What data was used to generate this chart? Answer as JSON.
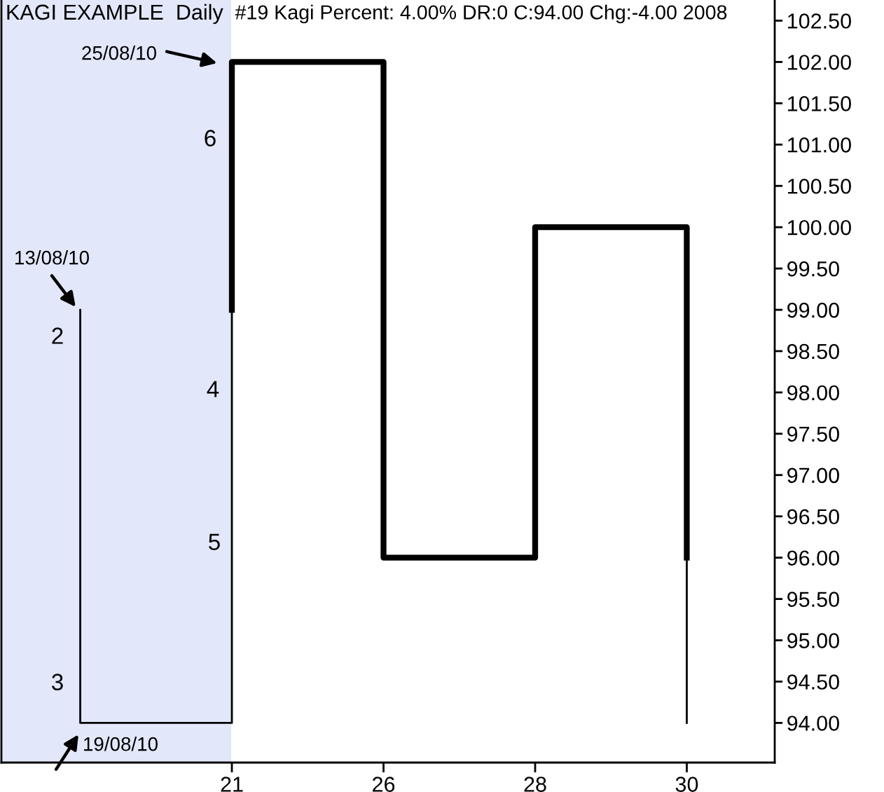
{
  "chart_data": {
    "type": "line",
    "title": "KAGI EXAMPLE  Daily",
    "subtitle": "#19 Kagi Percent: 4.00% DR:0 C:94.00 Chg:-4.00 2008",
    "categories": [
      null,
      "21",
      "26",
      "28",
      "30"
    ],
    "series": [
      {
        "color": "#000000",
        "x": [
          null,
          null,
          "21",
          "21"
        ],
        "values": [
          99,
          94,
          94,
          99
        ]
      },
      {
        "color": "#000000",
        "x": [
          "21",
          "21",
          "26",
          "26",
          "28",
          "28",
          "30",
          "30"
        ],
        "values": [
          99,
          102,
          102,
          96,
          96,
          100,
          100,
          96
        ]
      },
      {
        "color": "#000000",
        "x": [
          "30",
          "30"
        ],
        "values": [
          96,
          94
        ]
      }
    ],
    "ylim": [
      93.52,
      102.75
    ],
    "yticks": [
      {
        "value": 94,
        "label": "94.00"
      },
      {
        "value": 94.5,
        "label": "94.50"
      },
      {
        "value": 95,
        "label": "95.00"
      },
      {
        "value": 95.5,
        "label": "95.50"
      },
      {
        "value": 96,
        "label": "96.00"
      },
      {
        "value": 96.5,
        "label": "96.50"
      },
      {
        "value": 97,
        "label": "97.00"
      },
      {
        "value": 97.5,
        "label": "97.50"
      },
      {
        "value": 98,
        "label": "98.00"
      },
      {
        "value": 98.5,
        "label": "98.50"
      },
      {
        "value": 99,
        "label": "99.00"
      },
      {
        "value": 99.5,
        "label": "99.50"
      },
      {
        "value": 100,
        "label": "100.00"
      },
      {
        "value": 100.5,
        "label": "100.50"
      },
      {
        "value": 101,
        "label": "101.00"
      },
      {
        "value": 101.5,
        "label": "101.50"
      },
      {
        "value": 102,
        "label": "102.00"
      },
      {
        "value": 102.5,
        "label": "102.50"
      }
    ],
    "annotations": [
      "25/08/10",
      "13/08/10",
      "19/08/10",
      "6",
      "2",
      "4",
      "5",
      "3"
    ],
    "line_style": "solid"
  }
}
